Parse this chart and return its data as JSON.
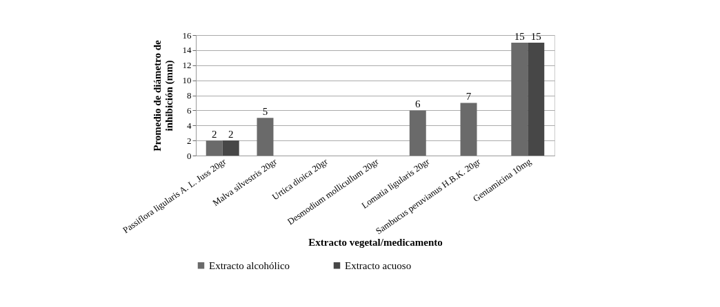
{
  "chart_data": {
    "type": "bar",
    "xlabel": "Extracto vegetal/medicamento",
    "ylabel": "Promedio de diámetro de inhibición (mm)",
    "categories": [
      "Passiflora ligularis A. L. Juss 20gr",
      "Malva silvestris 20gr",
      "Urtica dioica 20gr",
      "Desmodium mollicullum 20gr",
      "Lomatia ligularis 20gr",
      "Sambucus peruvianus H.B.K. 20gr",
      "Gentamicina 10mg"
    ],
    "series": [
      {
        "name": "Extracto alcohólico",
        "color": "#6a6a6a",
        "values": [
          2,
          5,
          0,
          0,
          6,
          7,
          15
        ],
        "value_labels": [
          "2",
          "5",
          null,
          null,
          "6",
          "7",
          "15"
        ]
      },
      {
        "name": "Extracto acuoso",
        "color": "#474747",
        "values": [
          2,
          0,
          0,
          0,
          0,
          0,
          15
        ],
        "value_labels": [
          "2",
          null,
          null,
          null,
          null,
          null,
          "15"
        ]
      }
    ],
    "ylim": [
      0,
      16
    ],
    "yticks": [
      0,
      2,
      4,
      6,
      8,
      10,
      12,
      14,
      16
    ],
    "grid": "y",
    "legend": "bottom"
  }
}
